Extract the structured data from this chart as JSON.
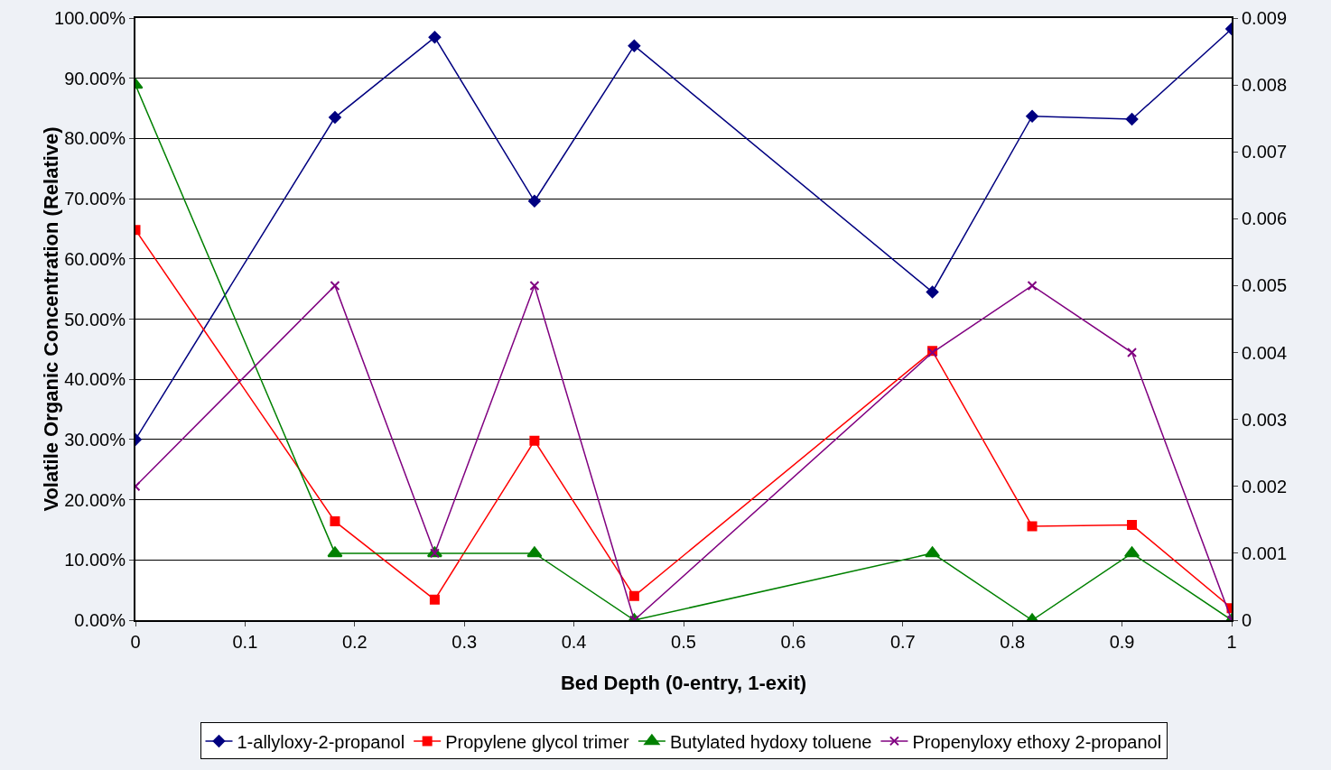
{
  "chart_data": {
    "type": "line",
    "xlabel": "Bed Depth (0-entry, 1-exit)",
    "ylabel": "Volatile Organic Concentration (Relative)",
    "x": [
      0,
      0.182,
      0.273,
      0.364,
      0.455,
      0.727,
      0.818,
      0.909,
      1
    ],
    "series": [
      {
        "name": "1-allyloxy-2-propanol",
        "color": "#000080",
        "marker": "diamond",
        "values": [
          30,
          83.5,
          96.8,
          69.6,
          95.4,
          54.5,
          83.7,
          83.2,
          98.2
        ]
      },
      {
        "name": "Propylene glycol trimer",
        "color": "#ff0000",
        "marker": "square",
        "values": [
          64.8,
          16.4,
          3.4,
          29.8,
          4.0,
          44.7,
          15.6,
          15.8,
          2.0
        ]
      },
      {
        "name": "Butylated hydoxy toluene",
        "color": "#008000",
        "marker": "triangle",
        "axis": "y2",
        "values": [
          0.008,
          0.001,
          0.001,
          0.001,
          0,
          0.001,
          0,
          0.001,
          0
        ]
      },
      {
        "name": "Propenyloxy ethoxy 2-propanol",
        "color": "#800080",
        "marker": "cross",
        "axis": "y2",
        "values": [
          0.002,
          0.005,
          0.001,
          0.005,
          0,
          0.004,
          0.005,
          0.004,
          0
        ]
      }
    ],
    "xlim": [
      0,
      1
    ],
    "xticks": [
      0,
      0.1,
      0.2,
      0.3,
      0.4,
      0.5,
      0.6,
      0.7,
      0.8,
      0.9,
      1
    ],
    "ylim": [
      0,
      100
    ],
    "yticks": [
      {
        "value": 0,
        "label": "0.00%"
      },
      {
        "value": 10,
        "label": "10.00%"
      },
      {
        "value": 20,
        "label": "20.00%"
      },
      {
        "value": 30,
        "label": "30.00%"
      },
      {
        "value": 40,
        "label": "40.00%"
      },
      {
        "value": 50,
        "label": "50.00%"
      },
      {
        "value": 60,
        "label": "60.00%"
      },
      {
        "value": 70,
        "label": "70.00%"
      },
      {
        "value": 80,
        "label": "80.00%"
      },
      {
        "value": 90,
        "label": "90.00%"
      },
      {
        "value": 100,
        "label": "100.00%"
      }
    ],
    "y2lim": [
      0,
      0.009
    ],
    "y2ticks": [
      0,
      0.001,
      0.002,
      0.003,
      0.004,
      0.005,
      0.006,
      0.007,
      0.008,
      0.009
    ],
    "grid": "y",
    "legend": "bottom",
    "line_style": "solid"
  }
}
